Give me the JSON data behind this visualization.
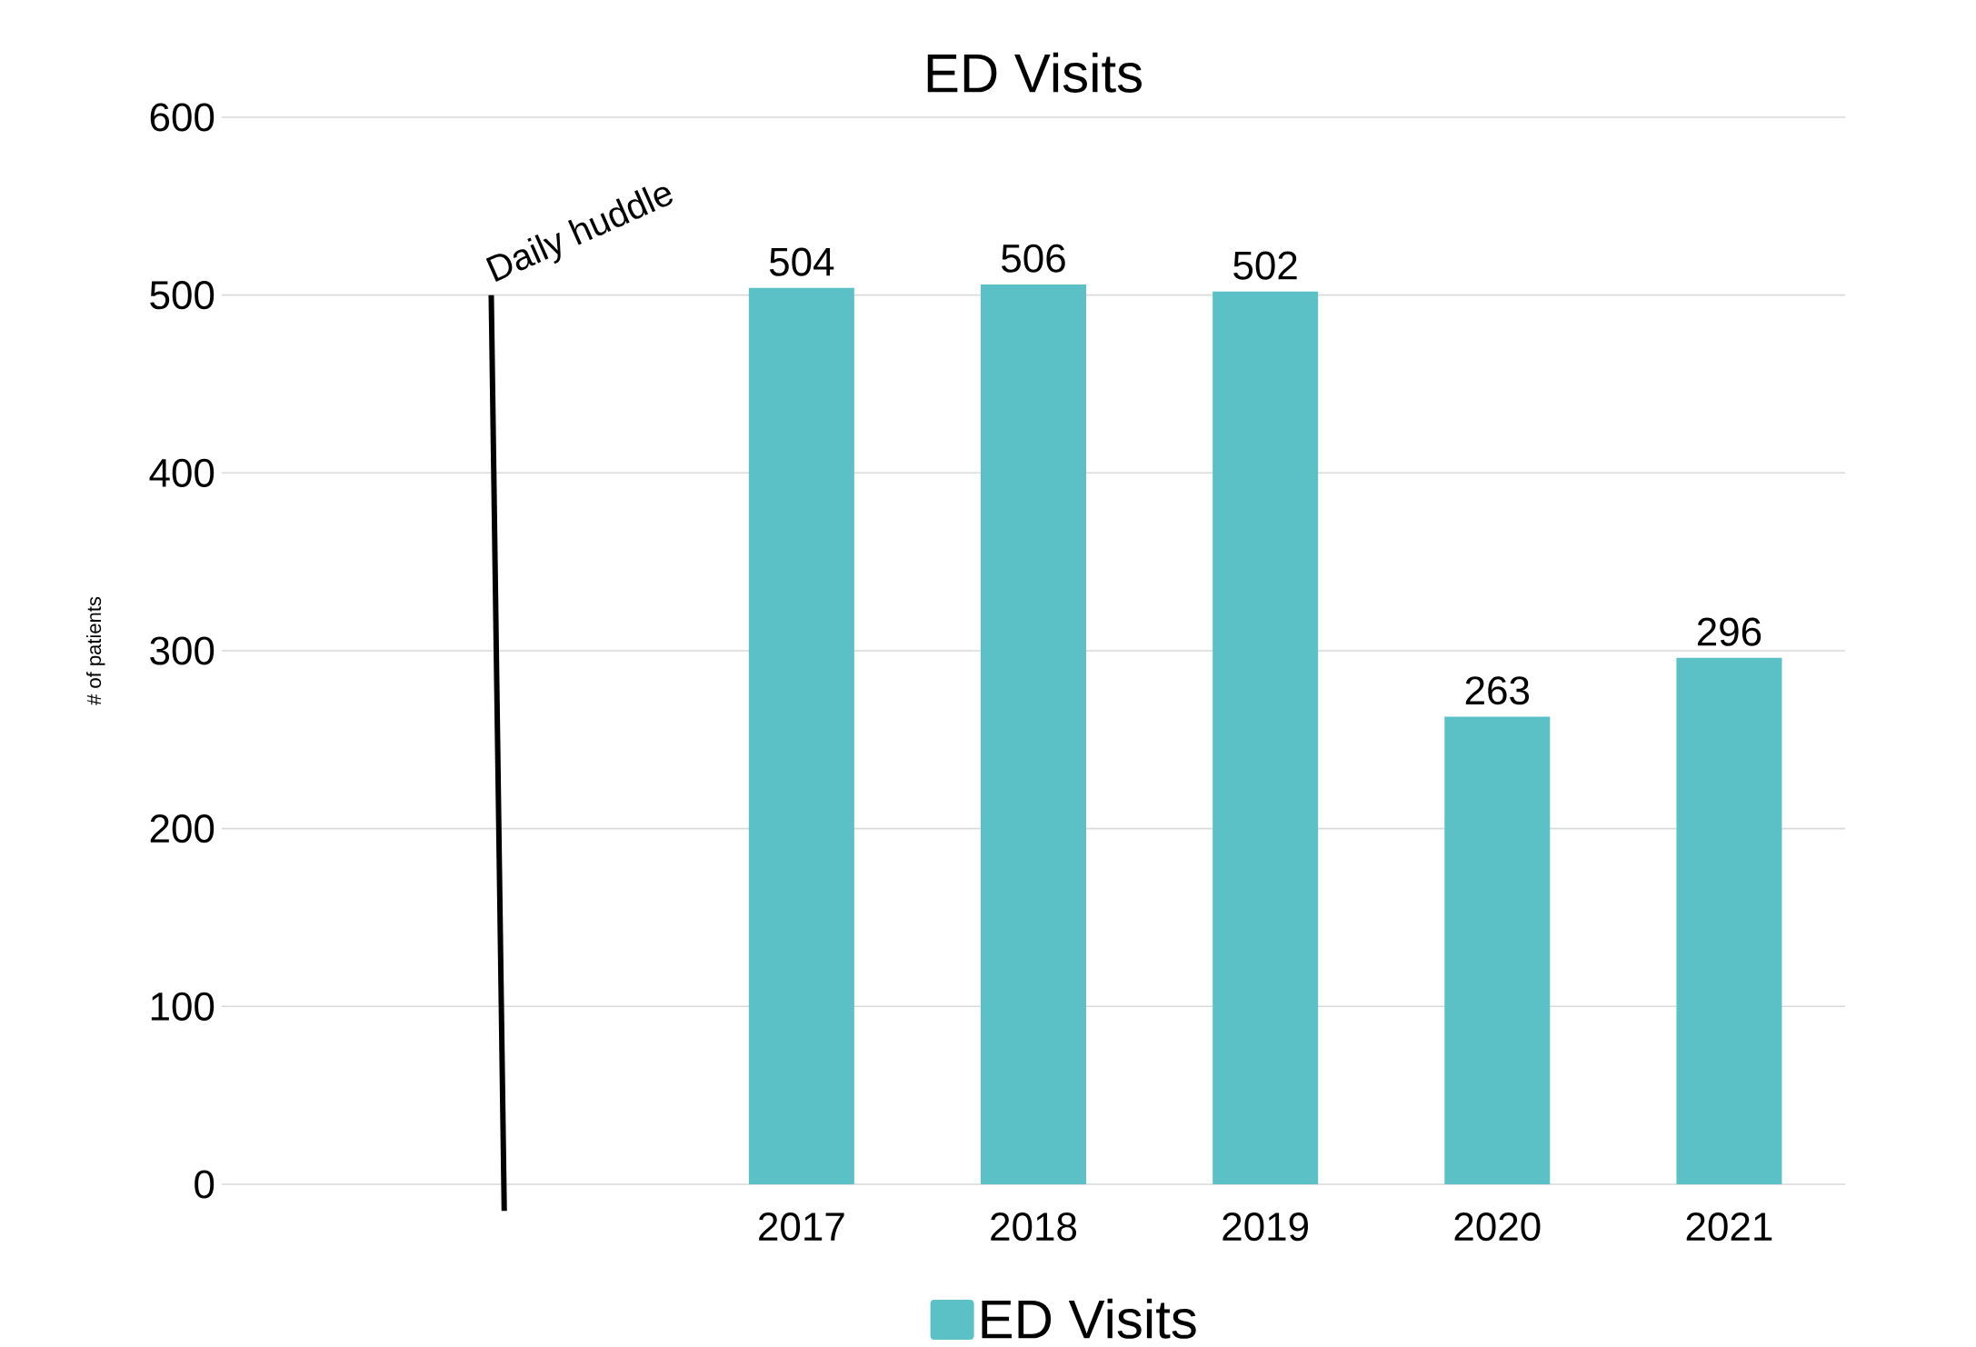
{
  "chart_data": {
    "type": "bar",
    "title": "ED Visits",
    "ylabel": "# of patients",
    "categories": [
      null,
      null,
      "2017",
      "2018",
      "2019",
      "2020",
      "2021"
    ],
    "series": [
      {
        "name": "ED Visits",
        "color": "#5cc1c6",
        "values": [
          null,
          null,
          504,
          506,
          502,
          263,
          296
        ]
      }
    ],
    "ylim": [
      0,
      600
    ],
    "yticks": [
      0,
      100,
      200,
      300,
      400,
      500,
      600
    ],
    "grid": "y",
    "legend": "bottom",
    "data_labels": true,
    "annotations": [
      "Daily huddle"
    ]
  }
}
